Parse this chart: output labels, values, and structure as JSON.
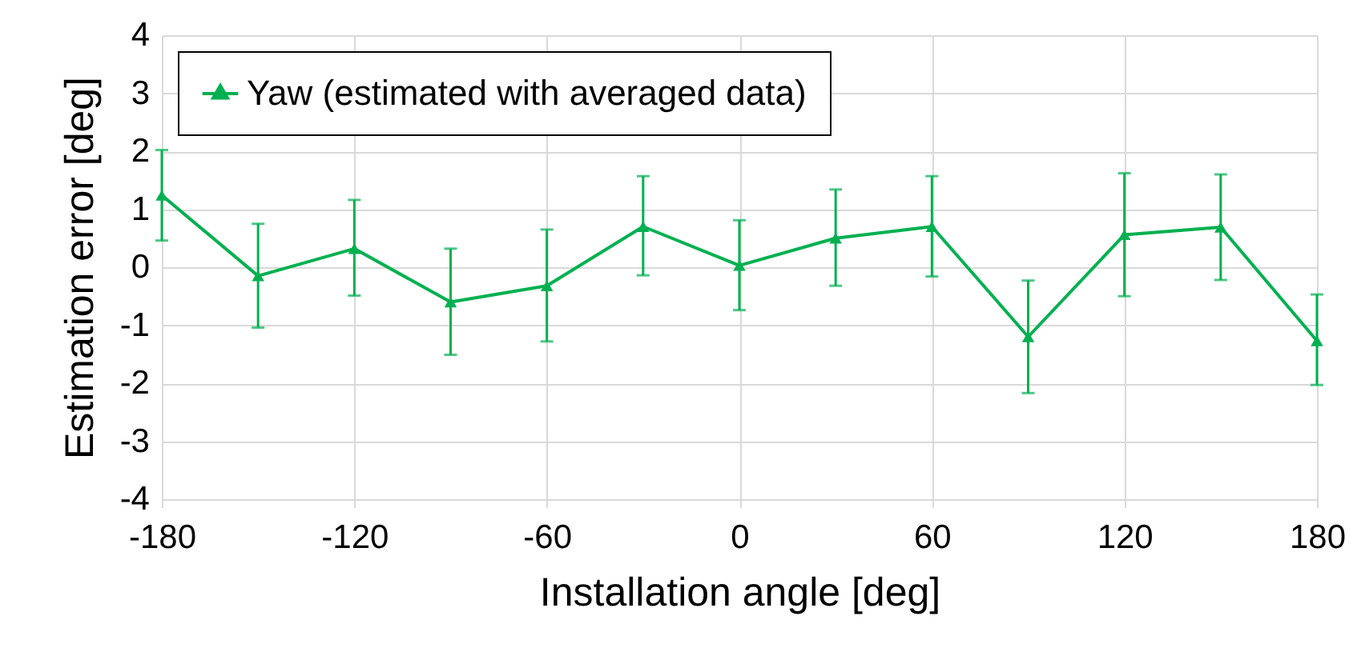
{
  "chart_data": {
    "type": "line",
    "xlabel": "Installation angle [deg]",
    "ylabel": "Estimation error [deg]",
    "x": [
      -180,
      -150,
      -120,
      -90,
      -60,
      -30,
      0,
      30,
      60,
      90,
      120,
      150,
      180
    ],
    "series": [
      {
        "name": "Yaw (estimated with averaged data)",
        "color": "#00b050",
        "values": [
          1.24,
          -0.15,
          0.32,
          -0.6,
          -0.32,
          0.7,
          0.03,
          0.5,
          0.7,
          -1.2,
          0.56,
          0.69,
          -1.27
        ],
        "errors": [
          [
            0.46,
            2.02
          ],
          [
            -1.04,
            0.75
          ],
          [
            -0.49,
            1.16
          ],
          [
            -1.51,
            0.32
          ],
          [
            -1.28,
            0.65
          ],
          [
            -0.14,
            1.57
          ],
          [
            -0.74,
            0.81
          ],
          [
            -0.32,
            1.34
          ],
          [
            -0.16,
            1.57
          ],
          [
            -2.17,
            -0.23
          ],
          [
            -0.5,
            1.62
          ],
          [
            -0.22,
            1.6
          ],
          [
            -2.03,
            -0.47
          ]
        ]
      }
    ],
    "xlim": [
      -180,
      180
    ],
    "xticks": [
      -180,
      -120,
      -60,
      0,
      60,
      120,
      180
    ],
    "ylim": [
      -4,
      4
    ],
    "yticks": [
      -4,
      -3,
      -2,
      -1,
      0,
      1,
      2,
      3,
      4
    ],
    "grid": true,
    "legend": "top left",
    "marker": "triangle",
    "line_style": "solid"
  }
}
